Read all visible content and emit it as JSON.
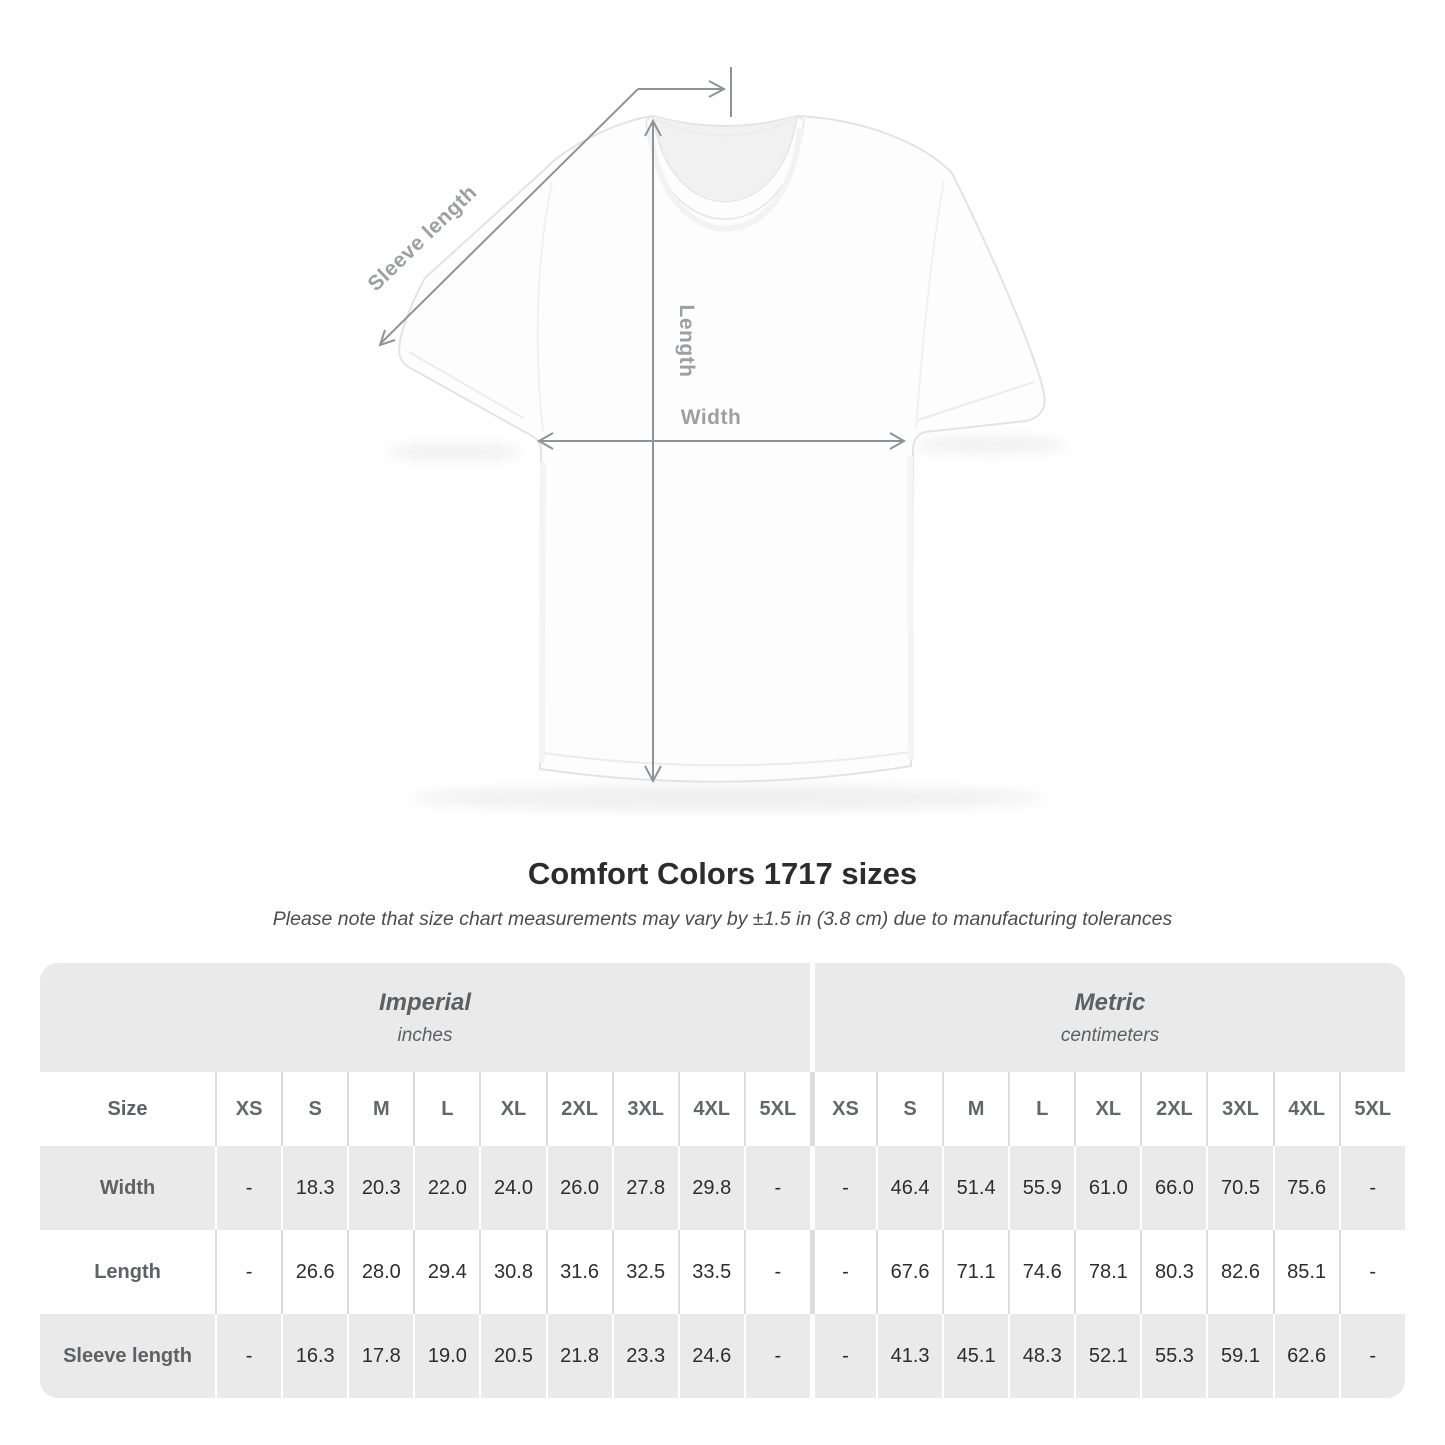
{
  "diagram": {
    "labels": {
      "sleeve_length": "Sleeve length",
      "length": "Length",
      "width": "Width"
    },
    "line_color": "#8f9396",
    "label_color": "#9aa0a4"
  },
  "heading": {
    "title": "Comfort Colors 1717 sizes",
    "subtitle": "Please note that size chart measurements may vary by ±1.5 in (3.8 cm) due to manufacturing tolerances"
  },
  "size_table": {
    "unit_groups": [
      {
        "label": "Imperial",
        "sublabel": "inches"
      },
      {
        "label": "Metric",
        "sublabel": "centimeters"
      }
    ],
    "size_col_header": "Size",
    "sizes": [
      "XS",
      "S",
      "M",
      "L",
      "XL",
      "2XL",
      "3XL",
      "4XL",
      "5XL"
    ],
    "rows": [
      {
        "label": "Width",
        "imperial": [
          "-",
          "18.3",
          "20.3",
          "22.0",
          "24.0",
          "26.0",
          "27.8",
          "29.8",
          "-"
        ],
        "metric": [
          "-",
          "46.4",
          "51.4",
          "55.9",
          "61.0",
          "66.0",
          "70.5",
          "75.6",
          "-"
        ]
      },
      {
        "label": "Length",
        "imperial": [
          "-",
          "26.6",
          "28.0",
          "29.4",
          "30.8",
          "31.6",
          "32.5",
          "33.5",
          "-"
        ],
        "metric": [
          "-",
          "67.6",
          "71.1",
          "74.6",
          "78.1",
          "80.3",
          "82.6",
          "85.1",
          "-"
        ]
      },
      {
        "label": "Sleeve length",
        "imperial": [
          "-",
          "16.3",
          "17.8",
          "19.0",
          "20.5",
          "21.8",
          "23.3",
          "24.6",
          "-"
        ],
        "metric": [
          "-",
          "41.3",
          "45.1",
          "48.3",
          "52.1",
          "55.3",
          "59.1",
          "62.6",
          "-"
        ]
      }
    ],
    "colors": {
      "band_gray": "#eaeaea",
      "separator_on_white": "#dcdcdc",
      "separator_on_gray": "#ffffff",
      "value_text": "#2d2d2d",
      "header_text": "#5d6266"
    }
  }
}
